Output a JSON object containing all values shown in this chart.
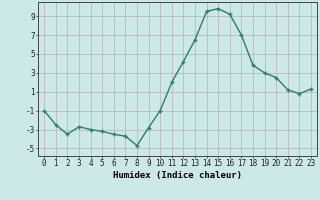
{
  "x": [
    0,
    1,
    2,
    3,
    4,
    5,
    6,
    7,
    8,
    9,
    10,
    11,
    12,
    13,
    14,
    15,
    16,
    17,
    18,
    19,
    20,
    21,
    22,
    23
  ],
  "y": [
    -1,
    -2.5,
    -3.5,
    -2.7,
    -3.0,
    -3.2,
    -3.5,
    -3.7,
    -4.7,
    -2.8,
    -1.0,
    2.0,
    4.2,
    6.5,
    9.5,
    9.8,
    9.2,
    7.0,
    3.8,
    3.0,
    2.5,
    1.2,
    0.8,
    1.3
  ],
  "line_color": "#2e7d6e",
  "marker": "+",
  "markersize": 3.5,
  "linewidth": 1.0,
  "xlabel": "Humidex (Indice chaleur)",
  "xlabel_fontsize": 6.5,
  "xlabel_fontweight": "bold",
  "yticks": [
    -5,
    -3,
    -1,
    1,
    3,
    5,
    7,
    9
  ],
  "xlim": [
    -0.5,
    23.5
  ],
  "ylim": [
    -5.8,
    10.5
  ],
  "bg_color": "#cce8e8",
  "grid_color": "#b8b0b0",
  "tick_fontsize": 5.5
}
